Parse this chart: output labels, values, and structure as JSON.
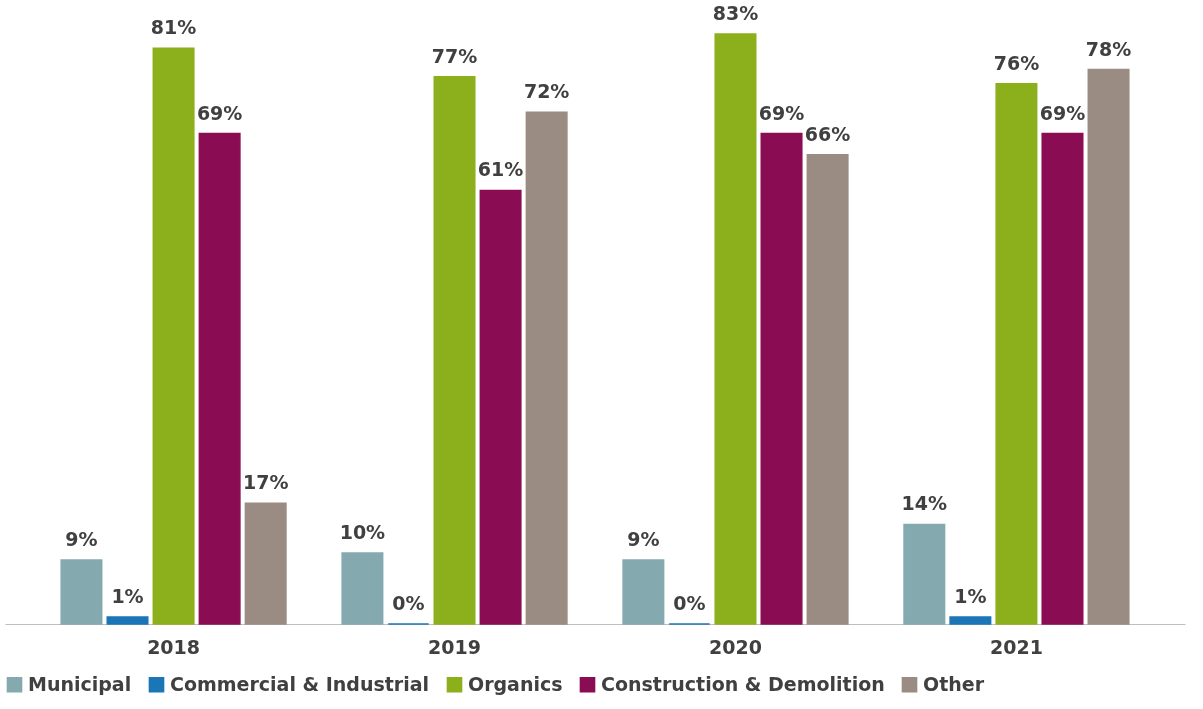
{
  "chart_data": {
    "type": "bar",
    "categories": [
      "2018",
      "2019",
      "2020",
      "2021"
    ],
    "series": [
      {
        "name": "Municipal",
        "color": "#84aab0",
        "values": [
          9,
          10,
          9,
          14
        ],
        "value_labels": [
          "9%",
          "10%",
          "9%",
          "14%"
        ]
      },
      {
        "name": "Commercial & Industrial",
        "color": "#1a76b6",
        "values": [
          1,
          0,
          0,
          1
        ],
        "value_labels": [
          "1%",
          "0%",
          "0%",
          "1%"
        ]
      },
      {
        "name": "Organics",
        "color": "#8cb01c",
        "values": [
          81,
          77,
          83,
          76
        ],
        "value_labels": [
          "81%",
          "77%",
          "83%",
          "76%"
        ]
      },
      {
        "name": "Construction & Demolition",
        "color": "#8a0c52",
        "values": [
          69,
          61,
          69,
          69
        ],
        "value_labels": [
          "69%",
          "61%",
          "69%",
          "69%"
        ]
      },
      {
        "name": "Other",
        "color": "#9a8c82",
        "values": [
          17,
          72,
          66,
          78
        ],
        "value_labels": [
          "17%",
          "72%",
          "66%",
          "78%"
        ]
      }
    ],
    "legend": "bottom",
    "grid": false
  }
}
